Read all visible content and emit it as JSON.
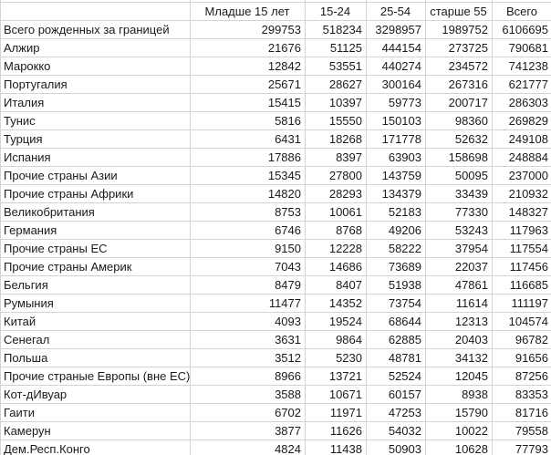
{
  "table": {
    "columns": [
      "",
      "Младше 15 лет",
      "15-24",
      "25-54",
      "старше 55",
      "Всего"
    ],
    "rows": [
      {
        "label": "Всего рожденных за границей",
        "values": [
          299753,
          518234,
          3298957,
          1989752,
          6106695
        ]
      },
      {
        "label": "Алжир",
        "values": [
          21676,
          51125,
          444154,
          273725,
          790681
        ]
      },
      {
        "label": "Марокко",
        "values": [
          12842,
          53551,
          440274,
          234572,
          741238
        ]
      },
      {
        "label": "Португалия",
        "values": [
          25671,
          28627,
          300164,
          267316,
          621777
        ]
      },
      {
        "label": "Италия",
        "values": [
          15415,
          10397,
          59773,
          200717,
          286303
        ]
      },
      {
        "label": "Тунис",
        "values": [
          5816,
          15550,
          150103,
          98360,
          269829
        ]
      },
      {
        "label": "Турция",
        "values": [
          6431,
          18268,
          171778,
          52632,
          249108
        ]
      },
      {
        "label": "Испания",
        "values": [
          17886,
          8397,
          63903,
          158698,
          248884
        ]
      },
      {
        "label": "Прочие страны Азии",
        "values": [
          15345,
          27800,
          143759,
          50095,
          237000
        ]
      },
      {
        "label": "Прочие страны Африки",
        "values": [
          14820,
          28293,
          134379,
          33439,
          210932
        ]
      },
      {
        "label": "Великобритания",
        "values": [
          8753,
          10061,
          52183,
          77330,
          148327
        ]
      },
      {
        "label": "Германия",
        "values": [
          6746,
          8768,
          49206,
          53243,
          117963
        ]
      },
      {
        "label": "Прочие страны ЕС",
        "values": [
          9150,
          12228,
          58222,
          37954,
          117554
        ]
      },
      {
        "label": "Прочие страны Америк",
        "values": [
          7043,
          14686,
          73689,
          22037,
          117456
        ]
      },
      {
        "label": "Бельгия",
        "values": [
          8479,
          8407,
          51938,
          47861,
          116685
        ]
      },
      {
        "label": "Румыния",
        "values": [
          11477,
          14352,
          73754,
          11614,
          111197
        ]
      },
      {
        "label": "Китай",
        "values": [
          4093,
          19524,
          68644,
          12313,
          104574
        ]
      },
      {
        "label": "Сенегал",
        "values": [
          3631,
          9864,
          62885,
          20403,
          96782
        ]
      },
      {
        "label": "Польша",
        "values": [
          3512,
          5230,
          48781,
          34132,
          91656
        ]
      },
      {
        "label": "Прочие страные Европы (вне ЕС)",
        "values": [
          8966,
          13721,
          52524,
          12045,
          87256
        ]
      },
      {
        "label": "Кот-дИвуар",
        "values": [
          3588,
          10671,
          60157,
          8938,
          83353
        ]
      },
      {
        "label": "Гаити",
        "values": [
          6702,
          11971,
          47253,
          15790,
          81716
        ]
      },
      {
        "label": "Камерун",
        "values": [
          3877,
          11626,
          54032,
          10022,
          79558
        ]
      },
      {
        "label": "Дем.Респ.Конго",
        "values": [
          4824,
          11438,
          50903,
          10628,
          77793
        ]
      }
    ],
    "colors": {
      "gridline": "#d4d4d4",
      "text": "#1a1a1a",
      "background": "#ffffff"
    }
  }
}
